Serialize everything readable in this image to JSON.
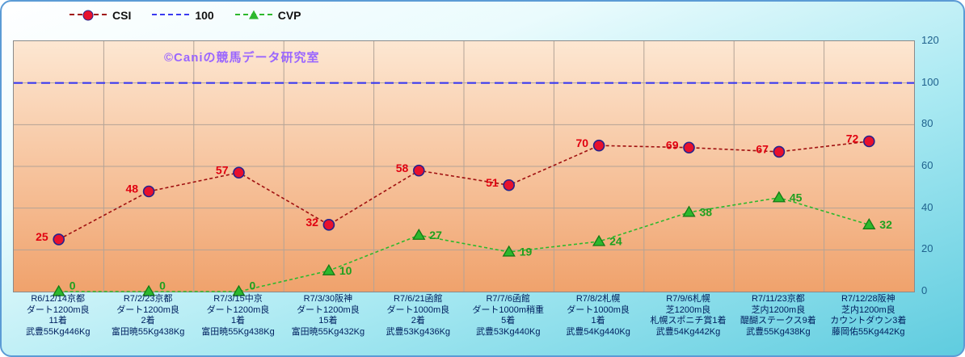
{
  "watermark": "©Caniの競馬データ研究室",
  "colors": {
    "frame_border": "#5b9bd5",
    "outer_top": "#ffffff",
    "outer_mid": "#a9e9f2",
    "outer_bottom": "#5fccdf",
    "plot_bg_top": "#fde7d2",
    "plot_bg_bottom": "#f0a26c",
    "watermark": "#9a66ff",
    "grid": "#b3a396",
    "axis_text": "#1f618d",
    "category_text": "#002060"
  },
  "chart_data": {
    "type": "line",
    "title": "",
    "xlabel": "",
    "ylabel": "",
    "ylim": [
      0,
      120
    ],
    "yticks": [
      0,
      20,
      40,
      60,
      80,
      100,
      120
    ],
    "grid": true,
    "legend_position": "top",
    "categories": [
      [
        "R6/12/14京都",
        "ダート1200m良",
        "11着",
        "武豊55Kg446Kg"
      ],
      [
        "R7/2/23京都",
        "ダート1200m良",
        "2着",
        "富田暁55Kg438Kg"
      ],
      [
        "R7/3/15中京",
        "ダート1200m良",
        "1着",
        "富田暁55Kg438Kg"
      ],
      [
        "R7/3/30阪神",
        "ダート1200m良",
        "15着",
        "富田暁55Kg432Kg"
      ],
      [
        "R7/6/21函館",
        "ダート1000m良",
        "2着",
        "武豊53Kg436Kg"
      ],
      [
        "R7/7/6函館",
        "ダート1000m稍重",
        "5着",
        "武豊53Kg440Kg"
      ],
      [
        "R7/8/2札幌",
        "ダート1000m良",
        "1着",
        "武豊54Kg440Kg"
      ],
      [
        "R7/9/6札幌",
        "芝1200m良",
        "札幌スポニチ賞1着",
        "武豊54Kg442Kg"
      ],
      [
        "R7/11/23京都",
        "芝内1200m良",
        "醍醐ステークス9着",
        "武豊55Kg438Kg"
      ],
      [
        "R7/12/28阪神",
        "芝内1200m良",
        "カウントダウン3着",
        "藤岡佑55Kg442Kg"
      ]
    ],
    "series": [
      {
        "name": "CSI",
        "values": [
          25,
          48,
          57,
          32,
          58,
          51,
          70,
          69,
          67,
          72
        ],
        "color": "#a01010",
        "marker": "circle",
        "marker_fill": "#e8112d",
        "marker_stroke": "#23238e",
        "label_color": "#e00010",
        "dash": "4 3"
      },
      {
        "name": "100",
        "values": [
          100,
          100,
          100,
          100,
          100,
          100,
          100,
          100,
          100,
          100
        ],
        "color": "#3a3af0",
        "marker": "none",
        "dash": "11 6"
      },
      {
        "name": "CVP",
        "values": [
          0,
          0,
          0,
          10,
          27,
          19,
          24,
          38,
          45,
          32
        ],
        "color": "#2db82d",
        "marker": "triangle",
        "marker_fill": "#2db82d",
        "marker_stroke": "#157a15",
        "label_color": "#1fa01f",
        "dash": "4 3"
      }
    ]
  }
}
